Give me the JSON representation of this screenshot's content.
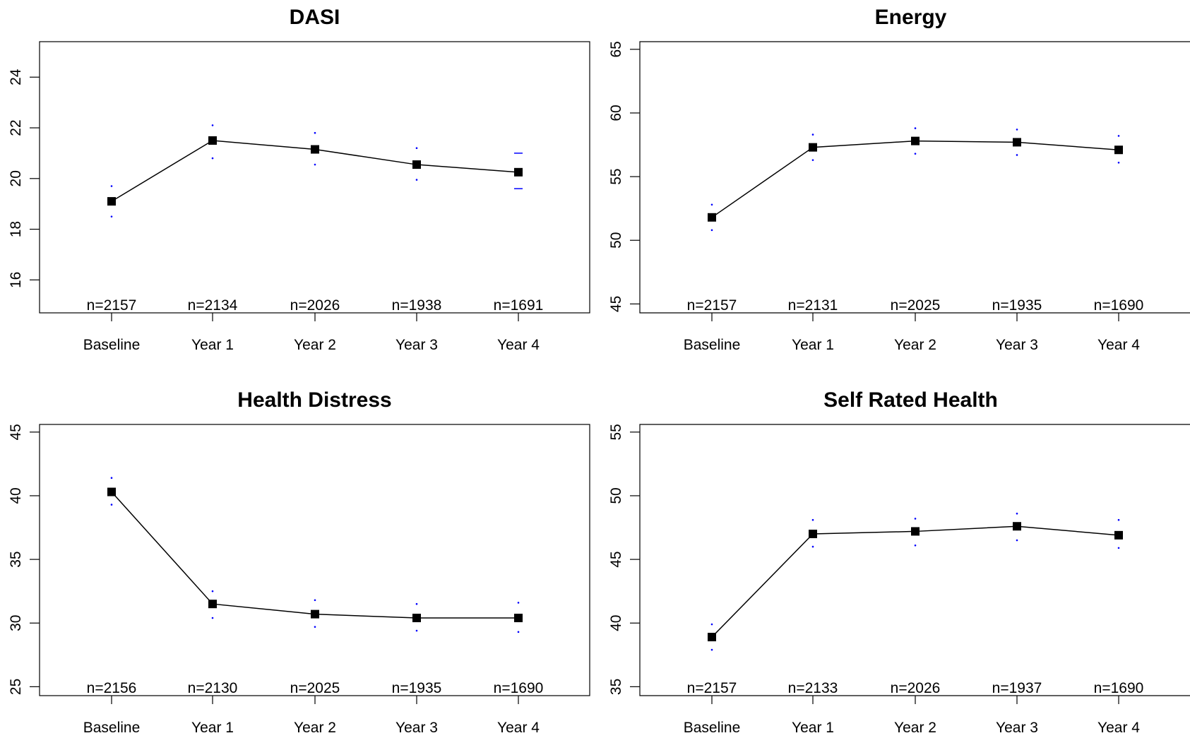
{
  "chart_data": [
    {
      "type": "line",
      "title": "DASI",
      "categories": [
        "Baseline",
        "Year 1",
        "Year 2",
        "Year 3",
        "Year 4"
      ],
      "values": [
        19.1,
        21.5,
        21.15,
        20.55,
        20.25
      ],
      "ci_lower": [
        18.5,
        20.8,
        20.55,
        19.95,
        19.6
      ],
      "ci_upper": [
        19.7,
        22.1,
        21.8,
        21.2,
        21.0
      ],
      "n_labels": [
        "n=2157",
        "n=2134",
        "n=2026",
        "n=1938",
        "n=1691"
      ],
      "yticks": [
        "16",
        "18",
        "20",
        "22",
        "24"
      ],
      "ylim": [
        14.7,
        25.4
      ],
      "xlabel": "",
      "ylabel": "",
      "grid": false
    },
    {
      "type": "line",
      "title": "Energy",
      "categories": [
        "Baseline",
        "Year 1",
        "Year 2",
        "Year 3",
        "Year 4"
      ],
      "values": [
        51.8,
        57.3,
        57.8,
        57.7,
        57.1
      ],
      "ci_lower": [
        50.8,
        56.3,
        56.8,
        56.7,
        56.1
      ],
      "ci_upper": [
        52.8,
        58.3,
        58.8,
        58.7,
        58.2
      ],
      "n_labels": [
        "n=2157",
        "n=2131",
        "n=2025",
        "n=1935",
        "n=1690"
      ],
      "yticks": [
        "45",
        "50",
        "55",
        "60",
        "65"
      ],
      "ylim": [
        44.3,
        65.6
      ],
      "xlabel": "",
      "ylabel": "",
      "grid": false
    },
    {
      "type": "line",
      "title": "Health Distress",
      "categories": [
        "Baseline",
        "Year 1",
        "Year 2",
        "Year 3",
        "Year 4"
      ],
      "values": [
        40.3,
        31.5,
        30.7,
        30.4,
        30.4
      ],
      "ci_lower": [
        39.3,
        30.4,
        29.7,
        29.4,
        29.3
      ],
      "ci_upper": [
        41.4,
        32.5,
        31.8,
        31.5,
        31.6
      ],
      "n_labels": [
        "n=2156",
        "n=2130",
        "n=2025",
        "n=1935",
        "n=1690"
      ],
      "yticks": [
        "25",
        "30",
        "35",
        "40",
        "45"
      ],
      "ylim": [
        24.3,
        45.6
      ],
      "xlabel": "",
      "ylabel": "",
      "grid": false
    },
    {
      "type": "line",
      "title": "Self Rated Health",
      "categories": [
        "Baseline",
        "Year 1",
        "Year 2",
        "Year 3",
        "Year 4"
      ],
      "values": [
        38.9,
        47.0,
        47.2,
        47.6,
        46.9
      ],
      "ci_lower": [
        37.9,
        46.0,
        46.1,
        46.5,
        45.9
      ],
      "ci_upper": [
        39.9,
        48.1,
        48.2,
        48.6,
        48.1
      ],
      "n_labels": [
        "n=2157",
        "n=2133",
        "n=2026",
        "n=1937",
        "n=1690"
      ],
      "yticks": [
        "35",
        "40",
        "45",
        "50",
        "55"
      ],
      "ylim": [
        34.3,
        55.6
      ],
      "xlabel": "",
      "ylabel": "",
      "grid": false
    }
  ]
}
